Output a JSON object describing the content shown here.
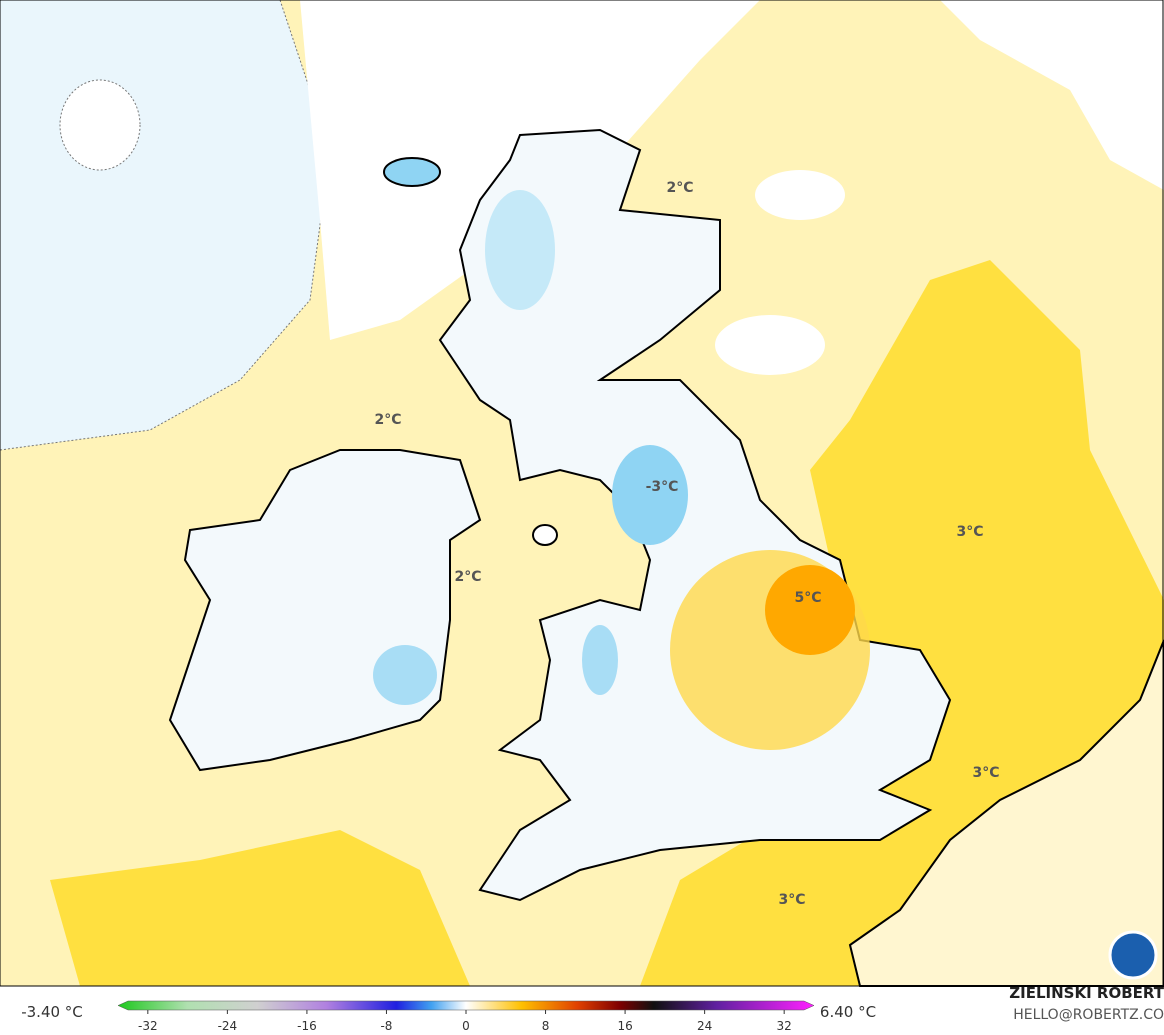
{
  "map_labels": [
    "2°C",
    "2°C",
    "2°C",
    "-3°C",
    "5°C",
    "3°C",
    "3°C",
    "3°C"
  ],
  "colorbar": {
    "min_label": "-3.40 °C",
    "max_label": "6.40 °C",
    "lim": [
      -35,
      35
    ],
    "ticks": [
      -32,
      -24,
      -16,
      -8,
      0,
      8,
      16,
      24,
      32
    ]
  },
  "credit": {
    "author": "ZIELINSKI ROBERT",
    "contact": "HELLO@ROBERTZ.CO"
  }
}
